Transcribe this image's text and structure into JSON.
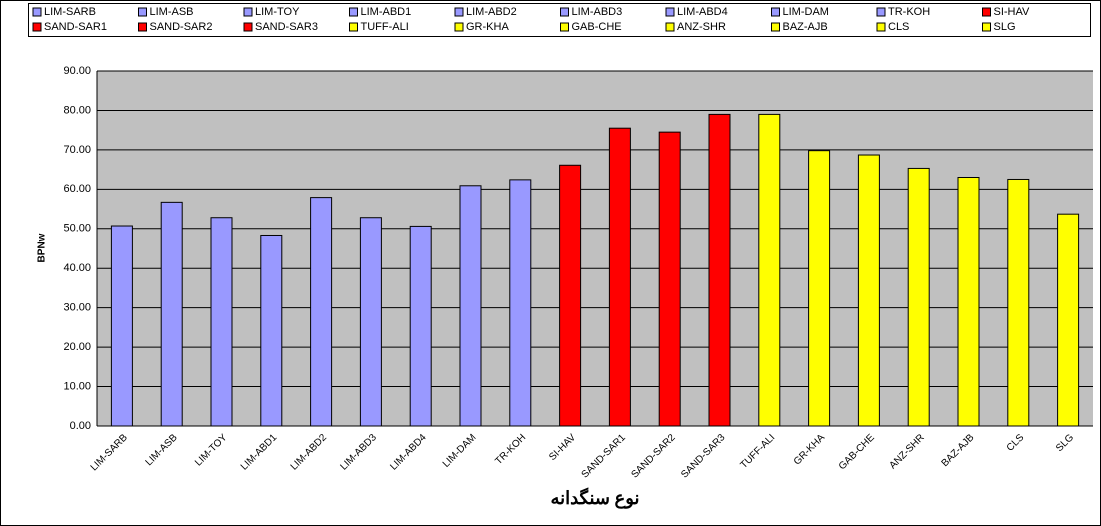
{
  "chart_data": {
    "type": "bar",
    "categories": [
      "LIM-SARB",
      "LIM-ASB",
      "LIM-TOY",
      "LIM-ABD1",
      "LIM-ABD2",
      "LIM-ABD3",
      "LIM-ABD4",
      "LIM-DAM",
      "TR-KOH",
      "SI-HAV",
      "SAND-SAR1",
      "SAND-SAR2",
      "SAND-SAR3",
      "TUFF-ALI",
      "GR-KHA",
      "GAB-CHE",
      "ANZ-SHR",
      "BAZ-AJB",
      "CLS",
      "SLG"
    ],
    "values": [
      50.7,
      56.7,
      52.8,
      48.3,
      57.9,
      52.8,
      50.6,
      60.9,
      62.4,
      66.1,
      75.5,
      74.5,
      79.0,
      79.0,
      69.8,
      68.7,
      65.3,
      63.0,
      62.5,
      53.7
    ],
    "colors": [
      "#9999ff",
      "#9999ff",
      "#9999ff",
      "#9999ff",
      "#9999ff",
      "#9999ff",
      "#9999ff",
      "#9999ff",
      "#9999ff",
      "#ff0000",
      "#ff0000",
      "#ff0000",
      "#ff0000",
      "#ffff00",
      "#ffff00",
      "#ffff00",
      "#ffff00",
      "#ffff00",
      "#ffff00",
      "#ffff00"
    ],
    "y_label": "BPNw",
    "x_label": "نوع سنگدانه",
    "ylim": [
      0,
      90
    ],
    "yticks": [
      {
        "value": 0,
        "label": "0.00"
      },
      {
        "value": 10,
        "label": "10.00"
      },
      {
        "value": 20,
        "label": "20.00"
      },
      {
        "value": 30,
        "label": "30.00"
      },
      {
        "value": 40,
        "label": "40.00"
      },
      {
        "value": 50,
        "label": "50.00"
      },
      {
        "value": 60,
        "label": "60.00"
      },
      {
        "value": 70,
        "label": "70.00"
      },
      {
        "value": 80,
        "label": "80.00"
      },
      {
        "value": 90,
        "label": "90.00"
      }
    ],
    "grid": true,
    "legend": "top"
  }
}
